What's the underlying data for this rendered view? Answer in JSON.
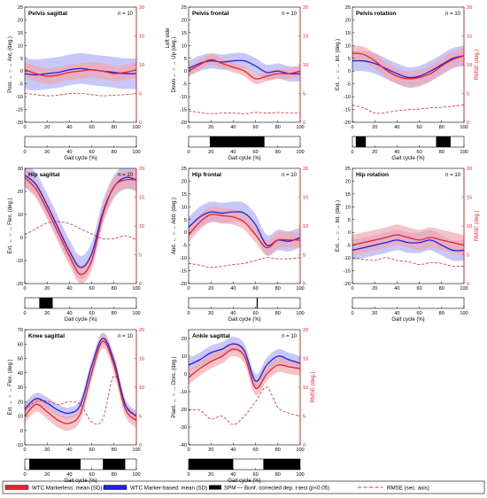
{
  "colors": {
    "markerless": "#e8212b",
    "markerless_band": "#f4a3a7",
    "markerbased": "#2020e0",
    "markerbased_band": "#aaaaf5",
    "rmse": "#e8212b",
    "spm": "#000000",
    "axis": "#000000",
    "rmse_axis": "#e8212b"
  },
  "legend": {
    "markerless": "WTC Markerless: mean (SD)",
    "markerbased": "WTC Marker-based: mean (SD)",
    "spm": "SPM — Bonf. corrected dep. t-test (p<0.05)",
    "rmse": "RMSE (sec. axis)"
  },
  "chart_data": [
    {
      "type": "line",
      "title": "Pelvis sagittal",
      "n_label": "n = 10",
      "ylabel": "Post. ← ○ → Ant. (deg.)",
      "xlabel": "Gait cycle (%)",
      "ylim": [
        -20,
        25
      ],
      "yticks": [
        -20,
        -15,
        -10,
        -5,
        0,
        5,
        10,
        15,
        20,
        25
      ],
      "y2label": "",
      "y2lim": [
        0,
        20
      ],
      "y2ticks": [
        0,
        5,
        10,
        15,
        20
      ],
      "xlim": [
        0,
        100
      ],
      "xticks": [
        0,
        20,
        40,
        60,
        80,
        100
      ],
      "x": [
        0,
        10,
        20,
        30,
        40,
        50,
        60,
        70,
        80,
        90,
        100
      ],
      "series": [
        {
          "name": "WTC Markerless: mean (SD)",
          "mean": [
            0.5,
            -1,
            -2,
            -1.5,
            -0.5,
            0,
            0.5,
            0,
            -1,
            -0.5,
            0.5
          ],
          "sd": [
            3,
            3,
            3,
            3,
            3,
            3,
            3,
            3,
            3,
            3,
            3
          ]
        },
        {
          "name": "WTC Marker-based: mean (SD)",
          "mean": [
            -1,
            -1.5,
            -1,
            -0.5,
            0.5,
            1,
            0.5,
            0,
            -0.5,
            -1,
            -1
          ],
          "sd": [
            6,
            6,
            6,
            6,
            6,
            6,
            6,
            6,
            6,
            6,
            6
          ]
        }
      ],
      "rmse": [
        5,
        4.8,
        4.6,
        4.7,
        5,
        5,
        4.8,
        4.6,
        4.7,
        4.8,
        5
      ],
      "spm_clusters": []
    },
    {
      "type": "line",
      "title": "Pelvis frontal",
      "n_label": "n = 10",
      "ylabel": "Down ← ○ → Up (deg.)",
      "ylabel2": "Left side",
      "xlabel": "Gait cycle (%)",
      "ylim": [
        -20,
        25
      ],
      "yticks": [
        -20,
        -15,
        -10,
        -5,
        0,
        5,
        10,
        15,
        20,
        25
      ],
      "y2label": "",
      "y2lim": [
        0,
        20
      ],
      "y2ticks": [
        0,
        5,
        10,
        15,
        20
      ],
      "xlim": [
        0,
        100
      ],
      "xticks": [
        0,
        20,
        40,
        60,
        80,
        100
      ],
      "x": [
        0,
        10,
        20,
        30,
        40,
        50,
        60,
        70,
        80,
        90,
        100
      ],
      "series": [
        {
          "name": "WTC Markerless: mean (SD)",
          "mean": [
            0,
            2.5,
            4.5,
            3,
            1.5,
            0,
            -3,
            -2,
            -1,
            -1,
            0
          ],
          "sd": [
            2,
            2,
            2,
            2,
            2,
            2,
            2,
            2,
            2,
            2,
            2
          ]
        },
        {
          "name": "WTC Marker-based: mean (SD)",
          "mean": [
            1,
            3,
            4,
            3.5,
            4,
            4,
            2,
            -0.5,
            0,
            -1,
            -1
          ],
          "sd": [
            3,
            3,
            3,
            3,
            3,
            3,
            3,
            3,
            3,
            3,
            3
          ]
        }
      ],
      "rmse": [
        2,
        1.7,
        1.5,
        1.6,
        1.6,
        1.5,
        1.7,
        1.6,
        1.7,
        1.6,
        1.6
      ],
      "spm_clusters": [
        [
          19,
          68
        ]
      ]
    },
    {
      "type": "line",
      "title": "Pelvis rotation",
      "n_label": "n = 10",
      "ylabel": "Ext. ← ○ → Int. (deg.)",
      "xlabel": "Gait cycle (%)",
      "ylim": [
        -20,
        25
      ],
      "yticks": [
        -20,
        -15,
        -10,
        -5,
        0,
        5,
        10,
        15,
        20,
        25
      ],
      "y2label": "RMSE (deg.)",
      "y2lim": [
        0,
        20
      ],
      "y2ticks": [
        0,
        5,
        10,
        15,
        20
      ],
      "xlim": [
        0,
        100
      ],
      "xticks": [
        0,
        20,
        40,
        60,
        80,
        100
      ],
      "x": [
        0,
        10,
        20,
        30,
        40,
        50,
        60,
        70,
        80,
        90,
        100
      ],
      "series": [
        {
          "name": "WTC Markerless: mean (SD)",
          "mean": [
            7,
            6.5,
            4,
            0.5,
            -2,
            -3,
            -2.5,
            -1,
            2,
            4.5,
            6
          ],
          "sd": [
            3,
            3,
            3,
            3,
            3,
            3,
            3,
            3,
            3,
            3,
            3
          ]
        },
        {
          "name": "WTC Marker-based: mean (SD)",
          "mean": [
            4,
            4,
            3,
            1,
            -1,
            -2.5,
            -2,
            0,
            2.5,
            5,
            6
          ],
          "sd": [
            4,
            4,
            4,
            4,
            4,
            4,
            4,
            4,
            4,
            4,
            4
          ]
        }
      ],
      "rmse": [
        3,
        2.5,
        1.6,
        1.7,
        2,
        2.2,
        2.3,
        2.5,
        2.6,
        2.8,
        3
      ],
      "spm_clusters": [
        [
          3,
          12
        ],
        [
          75,
          88
        ]
      ]
    },
    {
      "type": "line",
      "title": "Hip sagittal",
      "n_label": "n = 10",
      "ylabel": "Ext. ← ○ → Flex. (deg.)",
      "xlabel": "Gait cycle (%)",
      "ylim": [
        -20,
        30
      ],
      "yticks": [
        -20,
        -10,
        0,
        10,
        20,
        30
      ],
      "y2label": "",
      "y2lim": [
        0,
        20
      ],
      "y2ticks": [
        0,
        5,
        10,
        15,
        20
      ],
      "xlim": [
        0,
        100
      ],
      "xticks": [
        0,
        20,
        40,
        60,
        80,
        100
      ],
      "x": [
        0,
        10,
        20,
        30,
        40,
        50,
        60,
        70,
        80,
        90,
        100
      ],
      "series": [
        {
          "name": "WTC Markerless: mean (SD)",
          "mean": [
            26,
            21,
            12,
            2,
            -8,
            -16,
            -10,
            10,
            22,
            25,
            25
          ],
          "sd": [
            4,
            4,
            4,
            4,
            4,
            4,
            4,
            4,
            4,
            4,
            4
          ]
        },
        {
          "name": "WTC Marker-based: mean (SD)",
          "mean": [
            27,
            23,
            14,
            4,
            -6,
            -13,
            -7,
            11,
            22,
            26,
            25
          ],
          "sd": [
            5,
            5,
            5,
            5,
            5,
            5,
            5,
            5,
            5,
            5,
            5
          ]
        }
      ],
      "rmse": [
        8.5,
        9.5,
        10.5,
        10.7,
        10.4,
        9.5,
        8.6,
        7.8,
        7.8,
        8.3,
        7.6
      ],
      "spm_clusters": [
        [
          13,
          25
        ]
      ]
    },
    {
      "type": "line",
      "title": "Hip frontal",
      "n_label": "n = 10",
      "ylabel": "Abd. ← ○ → Add. (deg.)",
      "xlabel": "Gait cycle (%)",
      "ylim": [
        -20,
        25
      ],
      "yticks": [
        -20,
        -15,
        -10,
        -5,
        0,
        5,
        10,
        15,
        20,
        25
      ],
      "y2label": "",
      "y2lim": [
        0,
        20
      ],
      "y2ticks": [
        0,
        5,
        10,
        15,
        20
      ],
      "xlim": [
        0,
        100
      ],
      "xticks": [
        0,
        20,
        40,
        60,
        80,
        100
      ],
      "x": [
        0,
        10,
        20,
        30,
        40,
        50,
        60,
        70,
        80,
        90,
        100
      ],
      "series": [
        {
          "name": "WTC Markerless: mean (SD)",
          "mean": [
            -1,
            4,
            7,
            6.5,
            6,
            4,
            -1,
            -6,
            -3,
            -3,
            -3
          ],
          "sd": [
            3,
            3,
            3,
            3,
            3,
            3,
            3,
            3,
            3,
            3,
            3
          ]
        },
        {
          "name": "WTC Marker-based: mean (SD)",
          "mean": [
            2,
            6,
            8,
            7.5,
            8,
            7.5,
            3,
            -5,
            -3,
            -3.5,
            -2
          ],
          "sd": [
            4,
            4,
            4,
            4,
            4,
            4,
            4,
            4,
            4,
            4,
            4
          ]
        }
      ],
      "rmse": [
        3.5,
        3.2,
        2.8,
        3,
        3.3,
        3.5,
        4,
        4.5,
        4.3,
        4.3,
        4.5
      ],
      "spm_clusters": [
        [
          61,
          62
        ]
      ]
    },
    {
      "type": "line",
      "title": "Hip rotation",
      "n_label": "n = 10",
      "ylabel": "Ext. ← ○ → Int. (deg.)",
      "xlabel": "Gait cycle (%)",
      "ylim": [
        -20,
        25
      ],
      "yticks": [
        -20,
        -15,
        -10,
        -5,
        0,
        5,
        10,
        15,
        20,
        25
      ],
      "y2label": "RMSE (deg.)",
      "y2lim": [
        0,
        20
      ],
      "y2ticks": [
        0,
        5,
        10,
        15,
        20
      ],
      "xlim": [
        0,
        100
      ],
      "xticks": [
        0,
        20,
        40,
        60,
        80,
        100
      ],
      "x": [
        0,
        10,
        20,
        30,
        40,
        50,
        60,
        70,
        80,
        90,
        100
      ],
      "series": [
        {
          "name": "WTC Markerless: mean (SD)",
          "mean": [
            -5,
            -4,
            -3,
            -2,
            -1,
            -2,
            -3,
            -2,
            -3,
            -4,
            -5
          ],
          "sd": [
            4,
            4,
            4,
            4,
            4,
            4,
            4,
            4,
            4,
            4,
            4
          ]
        },
        {
          "name": "WTC Marker-based: mean (SD)",
          "mean": [
            -7,
            -6,
            -5,
            -4,
            -3,
            -4,
            -4,
            -3,
            -5,
            -7,
            -7
          ],
          "sd": [
            4,
            4,
            4,
            4,
            4,
            4,
            4,
            4,
            4,
            4,
            4
          ]
        }
      ],
      "rmse": [
        4.5,
        4.2,
        4,
        4.5,
        4,
        3.8,
        3.3,
        3.6,
        3.5,
        3,
        3
      ],
      "spm_clusters": []
    },
    {
      "type": "line",
      "title": "Knee sagittal",
      "n_label": "n = 10",
      "ylabel": "Ext. ← ○ → Flex. (deg.)",
      "xlabel": "Gait cycle (%)",
      "ylim": [
        -10,
        70
      ],
      "yticks": [
        -10,
        0,
        10,
        20,
        30,
        40,
        50,
        60,
        70
      ],
      "y2label": "",
      "y2lim": [
        0,
        20
      ],
      "y2ticks": [
        0,
        5,
        10,
        15,
        20
      ],
      "xlim": [
        0,
        100
      ],
      "xticks": [
        0,
        20,
        40,
        60,
        80,
        100
      ],
      "x": [
        0,
        10,
        20,
        30,
        40,
        50,
        60,
        70,
        80,
        90,
        100
      ],
      "series": [
        {
          "name": "WTC Markerless: mean (SD)",
          "mean": [
            10,
            18,
            13,
            7,
            5,
            12,
            40,
            62,
            45,
            15,
            7
          ],
          "sd": [
            5,
            5,
            5,
            5,
            5,
            5,
            5,
            5,
            5,
            5,
            5
          ]
        },
        {
          "name": "WTC Marker-based: mean (SD)",
          "mean": [
            15,
            22,
            19,
            14,
            12,
            18,
            45,
            64,
            48,
            18,
            10
          ],
          "sd": [
            4,
            4,
            4,
            4,
            4,
            4,
            4,
            4,
            4,
            4,
            4
          ]
        }
      ],
      "rmse": [
        6,
        7.5,
        7.6,
        7,
        7.5,
        7,
        4,
        4.5,
        12,
        7,
        5
      ],
      "spm_clusters": [
        [
          4,
          50
        ],
        [
          70,
          90
        ]
      ]
    },
    {
      "type": "line",
      "title": "Ankle sagittal",
      "n_label": "n = 10",
      "ylabel": "Plant. ← ○ → Dors. (deg.)",
      "xlabel": "Gait cycle (%)",
      "ylim": [
        -40,
        25
      ],
      "yticks": [
        -40,
        -30,
        -20,
        -10,
        0,
        10,
        20
      ],
      "y2label": "RMSE (deg.)",
      "y2lim": [
        0,
        20
      ],
      "y2ticks": [
        0,
        5,
        10,
        15,
        20
      ],
      "xlim": [
        0,
        100
      ],
      "xticks": [
        0,
        20,
        40,
        60,
        80,
        100
      ],
      "x": [
        0,
        10,
        20,
        30,
        40,
        50,
        60,
        70,
        80,
        90,
        100
      ],
      "series": [
        {
          "name": "WTC Markerless: mean (SD)",
          "mean": [
            -2,
            3,
            7,
            10,
            14,
            10,
            -8,
            0,
            5,
            4,
            3
          ],
          "sd": [
            4,
            4,
            4,
            4,
            4,
            4,
            4,
            4,
            4,
            4,
            4
          ]
        },
        {
          "name": "WTC Marker-based: mean (SD)",
          "mean": [
            5,
            8,
            12,
            14,
            17,
            13,
            -4,
            5,
            10,
            8,
            6
          ],
          "sd": [
            4,
            4,
            4,
            4,
            4,
            4,
            4,
            4,
            4,
            4,
            4
          ]
        }
      ],
      "rmse": [
        6,
        6,
        4.5,
        5,
        3.5,
        5,
        7.5,
        10,
        6.5,
        5.5,
        5
      ],
      "spm_clusters": [
        [
          0,
          40
        ],
        [
          67,
          100
        ]
      ]
    }
  ]
}
